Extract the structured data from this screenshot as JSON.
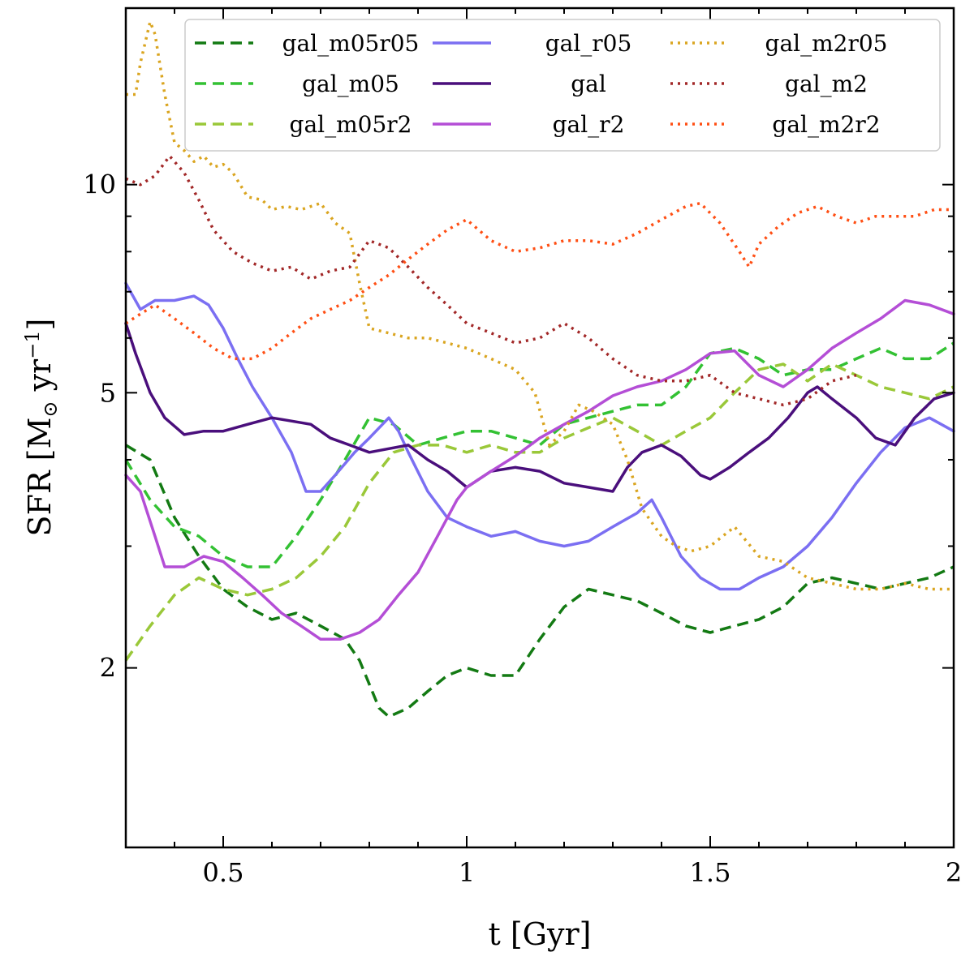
{
  "chart_data": {
    "type": "line",
    "title": "",
    "xlabel": "t [Gyr]",
    "ylabel_main": "SFR [M",
    "ylabel_sub": "⊙",
    "ylabel_tail": " yr",
    "ylabel_sup": "−1",
    "ylabel_close": "]",
    "xlim": [
      0.3,
      2.0
    ],
    "ylim": [
      1.1,
      18.0
    ],
    "yscale": "log",
    "grid": false,
    "legend_position": "top-right",
    "x_ticks": [
      {
        "v": 0.5,
        "label": "0.5"
      },
      {
        "v": 1.0,
        "label": "1"
      },
      {
        "v": 1.5,
        "label": "1.5"
      },
      {
        "v": 2.0,
        "label": "2"
      }
    ],
    "y_ticks": [
      {
        "v": 2,
        "label": "2"
      },
      {
        "v": 5,
        "label": "5"
      },
      {
        "v": 10,
        "label": "10"
      }
    ],
    "x_minor_step": 0.1,
    "y_minor": [
      2,
      3,
      4,
      5,
      6,
      7,
      8,
      9,
      10
    ],
    "series": [
      {
        "name": "gal_m05r05",
        "color": "#137a13",
        "dash": "14,8",
        "x": [
          0.3,
          0.35,
          0.4,
          0.45,
          0.5,
          0.55,
          0.6,
          0.65,
          0.7,
          0.75,
          0.78,
          0.82,
          0.84,
          0.88,
          0.92,
          0.96,
          1.0,
          1.05,
          1.1,
          1.15,
          1.2,
          1.25,
          1.3,
          1.35,
          1.4,
          1.45,
          1.5,
          1.55,
          1.6,
          1.65,
          1.7,
          1.75,
          1.8,
          1.85,
          1.9,
          1.95,
          2.0
        ],
        "y": [
          4.2,
          4.0,
          3.3,
          2.9,
          2.6,
          2.45,
          2.35,
          2.4,
          2.3,
          2.2,
          2.05,
          1.75,
          1.7,
          1.75,
          1.85,
          1.95,
          2.0,
          1.95,
          1.95,
          2.2,
          2.45,
          2.6,
          2.55,
          2.5,
          2.4,
          2.3,
          2.25,
          2.3,
          2.35,
          2.45,
          2.65,
          2.7,
          2.65,
          2.6,
          2.65,
          2.7,
          2.8
        ]
      },
      {
        "name": "gal_m05",
        "color": "#33c133",
        "dash": "14,8",
        "x": [
          0.3,
          0.35,
          0.4,
          0.45,
          0.5,
          0.55,
          0.6,
          0.65,
          0.7,
          0.75,
          0.8,
          0.85,
          0.9,
          0.95,
          1.0,
          1.05,
          1.1,
          1.15,
          1.2,
          1.25,
          1.3,
          1.35,
          1.4,
          1.45,
          1.5,
          1.55,
          1.6,
          1.65,
          1.7,
          1.75,
          1.8,
          1.85,
          1.9,
          1.95,
          2.0
        ],
        "y": [
          4.0,
          3.5,
          3.2,
          3.1,
          2.9,
          2.8,
          2.8,
          3.1,
          3.5,
          4.0,
          4.6,
          4.5,
          4.2,
          4.3,
          4.4,
          4.4,
          4.3,
          4.2,
          4.5,
          4.6,
          4.7,
          4.8,
          4.8,
          5.1,
          5.7,
          5.8,
          5.6,
          5.3,
          5.4,
          5.4,
          5.6,
          5.8,
          5.6,
          5.6,
          5.9
        ]
      },
      {
        "name": "gal_m05r2",
        "color": "#9ac839",
        "dash": "14,8",
        "x": [
          0.3,
          0.35,
          0.4,
          0.45,
          0.5,
          0.55,
          0.6,
          0.65,
          0.7,
          0.75,
          0.8,
          0.85,
          0.9,
          0.95,
          1.0,
          1.05,
          1.1,
          1.15,
          1.2,
          1.25,
          1.3,
          1.35,
          1.4,
          1.45,
          1.5,
          1.55,
          1.6,
          1.65,
          1.7,
          1.75,
          1.8,
          1.85,
          1.9,
          1.95,
          2.0
        ],
        "y": [
          2.05,
          2.3,
          2.55,
          2.7,
          2.6,
          2.55,
          2.6,
          2.7,
          2.9,
          3.2,
          3.7,
          4.1,
          4.2,
          4.2,
          4.1,
          4.2,
          4.1,
          4.1,
          4.3,
          4.45,
          4.6,
          4.4,
          4.2,
          4.4,
          4.6,
          5.0,
          5.4,
          5.5,
          5.2,
          5.5,
          5.3,
          5.1,
          5.0,
          4.9,
          5.1
        ]
      },
      {
        "name": "gal_r05",
        "color": "#7b6ff2",
        "dash": "",
        "x": [
          0.3,
          0.33,
          0.36,
          0.4,
          0.44,
          0.47,
          0.5,
          0.53,
          0.56,
          0.6,
          0.64,
          0.67,
          0.7,
          0.73,
          0.77,
          0.8,
          0.84,
          0.86,
          0.88,
          0.92,
          0.96,
          1.0,
          1.05,
          1.1,
          1.15,
          1.2,
          1.25,
          1.3,
          1.35,
          1.38,
          1.4,
          1.44,
          1.48,
          1.52,
          1.56,
          1.6,
          1.65,
          1.7,
          1.75,
          1.8,
          1.85,
          1.9,
          1.95,
          2.0
        ],
        "y": [
          7.2,
          6.6,
          6.8,
          6.8,
          6.9,
          6.7,
          6.2,
          5.6,
          5.1,
          4.6,
          4.1,
          3.6,
          3.6,
          3.8,
          4.1,
          4.3,
          4.6,
          4.4,
          4.1,
          3.6,
          3.3,
          3.2,
          3.1,
          3.15,
          3.05,
          3.0,
          3.05,
          3.2,
          3.35,
          3.5,
          3.3,
          2.9,
          2.7,
          2.6,
          2.6,
          2.7,
          2.8,
          3.0,
          3.3,
          3.7,
          4.1,
          4.45,
          4.6,
          4.4
        ]
      },
      {
        "name": "gal",
        "color": "#4a0f7c",
        "dash": "",
        "x": [
          0.3,
          0.32,
          0.35,
          0.38,
          0.42,
          0.46,
          0.5,
          0.55,
          0.6,
          0.64,
          0.68,
          0.72,
          0.76,
          0.8,
          0.84,
          0.88,
          0.92,
          0.96,
          1.0,
          1.05,
          1.1,
          1.15,
          1.2,
          1.25,
          1.3,
          1.33,
          1.36,
          1.4,
          1.44,
          1.48,
          1.5,
          1.54,
          1.58,
          1.62,
          1.66,
          1.7,
          1.72,
          1.75,
          1.8,
          1.84,
          1.88,
          1.92,
          1.96,
          2.0
        ],
        "y": [
          6.3,
          5.7,
          5.0,
          4.6,
          4.35,
          4.4,
          4.4,
          4.5,
          4.6,
          4.55,
          4.5,
          4.3,
          4.2,
          4.1,
          4.15,
          4.2,
          4.0,
          3.85,
          3.65,
          3.85,
          3.9,
          3.85,
          3.7,
          3.65,
          3.6,
          3.9,
          4.1,
          4.2,
          4.05,
          3.8,
          3.75,
          3.9,
          4.1,
          4.3,
          4.6,
          5.0,
          5.1,
          4.9,
          4.6,
          4.3,
          4.2,
          4.6,
          4.9,
          5.0
        ]
      },
      {
        "name": "gal_r2",
        "color": "#b44ed6",
        "dash": "",
        "x": [
          0.3,
          0.33,
          0.36,
          0.38,
          0.42,
          0.46,
          0.5,
          0.54,
          0.58,
          0.62,
          0.66,
          0.7,
          0.74,
          0.78,
          0.82,
          0.86,
          0.9,
          0.94,
          0.98,
          1.0,
          1.05,
          1.1,
          1.15,
          1.2,
          1.25,
          1.3,
          1.35,
          1.4,
          1.45,
          1.5,
          1.55,
          1.6,
          1.65,
          1.7,
          1.75,
          1.8,
          1.85,
          1.9,
          1.95,
          2.0
        ],
        "y": [
          3.8,
          3.6,
          3.1,
          2.8,
          2.8,
          2.9,
          2.85,
          2.7,
          2.55,
          2.4,
          2.3,
          2.2,
          2.2,
          2.25,
          2.35,
          2.55,
          2.75,
          3.1,
          3.5,
          3.65,
          3.85,
          4.05,
          4.3,
          4.5,
          4.7,
          4.95,
          5.1,
          5.2,
          5.4,
          5.7,
          5.75,
          5.3,
          5.1,
          5.4,
          5.8,
          6.1,
          6.4,
          6.8,
          6.7,
          6.5
        ]
      },
      {
        "name": "gal_m2r05",
        "color": "#daa520",
        "dash": "3,6",
        "x": [
          0.3,
          0.32,
          0.33,
          0.35,
          0.36,
          0.38,
          0.4,
          0.42,
          0.44,
          0.46,
          0.48,
          0.5,
          0.52,
          0.55,
          0.58,
          0.6,
          0.63,
          0.66,
          0.7,
          0.73,
          0.76,
          0.78,
          0.8,
          0.84,
          0.88,
          0.92,
          0.96,
          1.0,
          1.05,
          1.1,
          1.14,
          1.17,
          1.2,
          1.23,
          1.26,
          1.3,
          1.33,
          1.36,
          1.4,
          1.43,
          1.46,
          1.5,
          1.55,
          1.6,
          1.65,
          1.7,
          1.75,
          1.8,
          1.85,
          1.9,
          1.95,
          2.0
        ],
        "y": [
          13.5,
          13.5,
          15.0,
          17.2,
          16.5,
          13.5,
          11.5,
          11.2,
          10.8,
          11.0,
          10.6,
          10.7,
          10.4,
          9.6,
          9.5,
          9.2,
          9.3,
          9.2,
          9.4,
          8.8,
          8.5,
          7.2,
          6.2,
          6.1,
          6.0,
          6.0,
          5.9,
          5.8,
          5.6,
          5.4,
          5.0,
          4.2,
          4.4,
          4.8,
          4.7,
          4.5,
          4.0,
          3.4,
          3.1,
          3.0,
          2.95,
          3.0,
          3.2,
          2.9,
          2.85,
          2.7,
          2.65,
          2.6,
          2.6,
          2.65,
          2.6,
          2.6
        ]
      },
      {
        "name": "gal_m2",
        "color": "#a22828",
        "dash": "3,6",
        "x": [
          0.3,
          0.33,
          0.36,
          0.39,
          0.42,
          0.45,
          0.48,
          0.52,
          0.56,
          0.6,
          0.64,
          0.68,
          0.72,
          0.76,
          0.8,
          0.84,
          0.88,
          0.92,
          0.96,
          1.0,
          1.05,
          1.1,
          1.15,
          1.2,
          1.25,
          1.3,
          1.35,
          1.4,
          1.45,
          1.5,
          1.55,
          1.6,
          1.65,
          1.7,
          1.75,
          1.8
        ],
        "y": [
          10.2,
          10.0,
          10.3,
          11.0,
          10.4,
          9.5,
          8.6,
          8.0,
          7.7,
          7.5,
          7.6,
          7.3,
          7.5,
          7.6,
          8.3,
          8.1,
          7.6,
          7.1,
          6.7,
          6.3,
          6.1,
          5.9,
          6.0,
          6.3,
          6.0,
          5.6,
          5.3,
          5.2,
          5.2,
          5.3,
          5.0,
          4.9,
          4.8,
          4.9,
          5.2,
          5.3
        ]
      },
      {
        "name": "gal_m2r2",
        "color": "#ff4f14",
        "dash": "3,6",
        "x": [
          0.3,
          0.33,
          0.36,
          0.4,
          0.44,
          0.48,
          0.52,
          0.56,
          0.6,
          0.64,
          0.68,
          0.72,
          0.76,
          0.8,
          0.84,
          0.88,
          0.92,
          0.96,
          1.0,
          1.05,
          1.1,
          1.15,
          1.2,
          1.25,
          1.3,
          1.35,
          1.4,
          1.45,
          1.48,
          1.52,
          1.56,
          1.58,
          1.6,
          1.64,
          1.68,
          1.72,
          1.76,
          1.8,
          1.84,
          1.88,
          1.92,
          1.96,
          2.0
        ],
        "y": [
          6.3,
          6.5,
          6.7,
          6.4,
          6.1,
          5.8,
          5.6,
          5.6,
          5.8,
          6.1,
          6.4,
          6.6,
          6.8,
          7.1,
          7.4,
          7.8,
          8.2,
          8.6,
          8.9,
          8.3,
          8.0,
          8.1,
          8.3,
          8.3,
          8.2,
          8.5,
          8.9,
          9.3,
          9.4,
          8.8,
          8.0,
          7.6,
          8.2,
          8.7,
          9.1,
          9.3,
          9.0,
          8.8,
          9.0,
          9.0,
          9.0,
          9.2,
          9.2
        ]
      }
    ]
  }
}
